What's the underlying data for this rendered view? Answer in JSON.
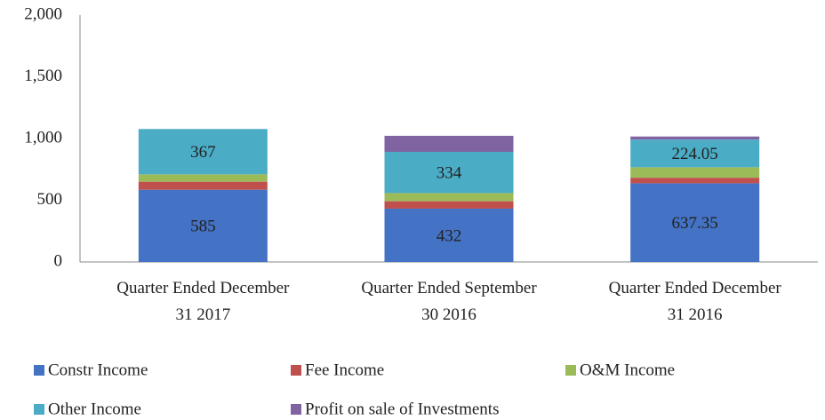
{
  "chart_data": {
    "type": "stacked_bar",
    "categories": [
      "Quarter Ended December 31 2017",
      "Quarter Ended September 30 2016",
      "Quarter Ended December 31 2016"
    ],
    "series": [
      {
        "name": "Constr Income",
        "color": "#4472c4",
        "values": [
          585,
          432,
          637.35
        ],
        "show_labels": true
      },
      {
        "name": "Fee Income",
        "color": "#c0504d",
        "values": [
          65,
          60,
          45
        ]
      },
      {
        "name": "O&M Income",
        "color": "#9bbb59",
        "values": [
          60,
          66,
          85
        ]
      },
      {
        "name": "Other Income",
        "color": "#4bacc6",
        "values": [
          367,
          334,
          224.05
        ],
        "show_labels": true
      },
      {
        "name": "Profit on sale of Investments",
        "color": "#8064a2",
        "values": [
          0,
          130,
          25
        ]
      }
    ],
    "ylim": [
      0,
      2000
    ],
    "yticks": [
      0,
      500,
      {
        "value": 1000,
        "label": "1,000"
      },
      {
        "value": 1500,
        "label": "1,500"
      },
      {
        "value": 2000,
        "label": "2,000"
      }
    ],
    "grid": false
  }
}
